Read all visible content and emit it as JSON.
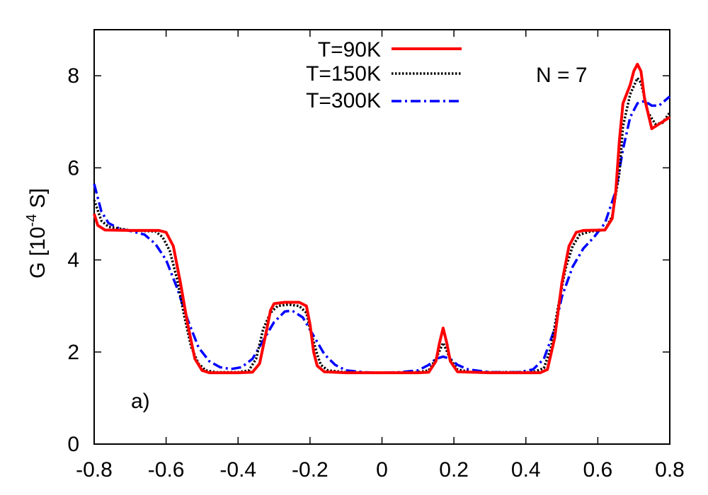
{
  "chart_data": {
    "type": "line",
    "title": "",
    "xlabel": "",
    "ylabel": "G [10",
    "ylabel_exp": "-4",
    "ylabel_tail": " S]",
    "xlim": [
      -0.8,
      0.8
    ],
    "ylim": [
      0,
      9
    ],
    "x_ticks": [
      -0.8,
      -0.6,
      -0.4,
      -0.2,
      0,
      0.2,
      0.4,
      0.6,
      0.8
    ],
    "x_tick_labels": [
      "-0.8",
      "-0.6",
      "-0.4",
      "-0.2",
      "0",
      "0.2",
      "0.4",
      "0.6",
      "0.8"
    ],
    "y_ticks": [
      0,
      2,
      4,
      6,
      8
    ],
    "y_tick_labels": [
      "0",
      "2",
      "4",
      "6",
      "8"
    ],
    "grid": false,
    "legend_position": "top-center",
    "annotations": {
      "panel": "a)",
      "n_label": "N = 7"
    },
    "series": [
      {
        "name": "T=90K",
        "color": "#ff0000",
        "style": "solid",
        "points": [
          [
            -0.8,
            5.0
          ],
          [
            -0.79,
            4.75
          ],
          [
            -0.77,
            4.65
          ],
          [
            -0.7,
            4.64
          ],
          [
            -0.62,
            4.64
          ],
          [
            -0.6,
            4.6
          ],
          [
            -0.58,
            4.3
          ],
          [
            -0.56,
            3.5
          ],
          [
            -0.54,
            2.6
          ],
          [
            -0.52,
            1.85
          ],
          [
            -0.5,
            1.6
          ],
          [
            -0.48,
            1.55
          ],
          [
            -0.4,
            1.55
          ],
          [
            -0.36,
            1.56
          ],
          [
            -0.34,
            1.75
          ],
          [
            -0.32,
            2.5
          ],
          [
            -0.31,
            2.9
          ],
          [
            -0.3,
            3.05
          ],
          [
            -0.27,
            3.08
          ],
          [
            -0.23,
            3.08
          ],
          [
            -0.21,
            3.0
          ],
          [
            -0.2,
            2.6
          ],
          [
            -0.19,
            2.0
          ],
          [
            -0.18,
            1.7
          ],
          [
            -0.16,
            1.57
          ],
          [
            -0.1,
            1.55
          ],
          [
            0.0,
            1.55
          ],
          [
            0.1,
            1.55
          ],
          [
            0.13,
            1.56
          ],
          [
            0.15,
            1.8
          ],
          [
            0.16,
            2.2
          ],
          [
            0.17,
            2.52
          ],
          [
            0.18,
            2.2
          ],
          [
            0.19,
            1.8
          ],
          [
            0.21,
            1.57
          ],
          [
            0.3,
            1.55
          ],
          [
            0.44,
            1.55
          ],
          [
            0.46,
            1.62
          ],
          [
            0.48,
            2.3
          ],
          [
            0.5,
            3.5
          ],
          [
            0.52,
            4.3
          ],
          [
            0.54,
            4.6
          ],
          [
            0.56,
            4.64
          ],
          [
            0.62,
            4.65
          ],
          [
            0.64,
            4.9
          ],
          [
            0.65,
            5.5
          ],
          [
            0.66,
            6.6
          ],
          [
            0.67,
            7.4
          ],
          [
            0.69,
            7.8
          ],
          [
            0.7,
            8.1
          ],
          [
            0.71,
            8.25
          ],
          [
            0.72,
            8.1
          ],
          [
            0.73,
            7.5
          ],
          [
            0.75,
            6.85
          ],
          [
            0.77,
            6.95
          ],
          [
            0.8,
            7.1
          ]
        ]
      },
      {
        "name": "T=150K",
        "color": "#000000",
        "style": "dotted",
        "points": [
          [
            -0.8,
            5.3
          ],
          [
            -0.78,
            4.85
          ],
          [
            -0.76,
            4.72
          ],
          [
            -0.7,
            4.64
          ],
          [
            -0.63,
            4.62
          ],
          [
            -0.61,
            4.5
          ],
          [
            -0.59,
            4.2
          ],
          [
            -0.57,
            3.6
          ],
          [
            -0.55,
            2.8
          ],
          [
            -0.53,
            2.1
          ],
          [
            -0.51,
            1.75
          ],
          [
            -0.49,
            1.6
          ],
          [
            -0.46,
            1.56
          ],
          [
            -0.4,
            1.56
          ],
          [
            -0.37,
            1.6
          ],
          [
            -0.35,
            1.85
          ],
          [
            -0.33,
            2.5
          ],
          [
            -0.31,
            2.85
          ],
          [
            -0.29,
            3.0
          ],
          [
            -0.26,
            3.03
          ],
          [
            -0.23,
            3.0
          ],
          [
            -0.21,
            2.85
          ],
          [
            -0.2,
            2.5
          ],
          [
            -0.18,
            1.95
          ],
          [
            -0.17,
            1.72
          ],
          [
            -0.15,
            1.6
          ],
          [
            -0.1,
            1.56
          ],
          [
            0.0,
            1.55
          ],
          [
            0.1,
            1.56
          ],
          [
            0.13,
            1.6
          ],
          [
            0.15,
            1.85
          ],
          [
            0.17,
            2.2
          ],
          [
            0.19,
            1.85
          ],
          [
            0.21,
            1.62
          ],
          [
            0.25,
            1.56
          ],
          [
            0.42,
            1.56
          ],
          [
            0.45,
            1.65
          ],
          [
            0.47,
            2.1
          ],
          [
            0.49,
            3.0
          ],
          [
            0.51,
            3.8
          ],
          [
            0.53,
            4.3
          ],
          [
            0.55,
            4.55
          ],
          [
            0.58,
            4.62
          ],
          [
            0.62,
            4.65
          ],
          [
            0.64,
            4.95
          ],
          [
            0.66,
            5.9
          ],
          [
            0.67,
            6.9
          ],
          [
            0.69,
            7.6
          ],
          [
            0.71,
            7.95
          ],
          [
            0.72,
            7.85
          ],
          [
            0.74,
            7.2
          ],
          [
            0.76,
            6.95
          ],
          [
            0.78,
            6.98
          ],
          [
            0.8,
            7.2
          ]
        ]
      },
      {
        "name": "T=300K",
        "color": "#0000ff",
        "style": "dash-dot",
        "points": [
          [
            -0.8,
            5.65
          ],
          [
            -0.78,
            5.05
          ],
          [
            -0.76,
            4.8
          ],
          [
            -0.73,
            4.68
          ],
          [
            -0.7,
            4.63
          ],
          [
            -0.66,
            4.55
          ],
          [
            -0.63,
            4.35
          ],
          [
            -0.6,
            4.0
          ],
          [
            -0.57,
            3.4
          ],
          [
            -0.54,
            2.7
          ],
          [
            -0.51,
            2.1
          ],
          [
            -0.48,
            1.8
          ],
          [
            -0.45,
            1.67
          ],
          [
            -0.42,
            1.63
          ],
          [
            -0.39,
            1.67
          ],
          [
            -0.36,
            1.85
          ],
          [
            -0.33,
            2.25
          ],
          [
            -0.3,
            2.65
          ],
          [
            -0.27,
            2.88
          ],
          [
            -0.25,
            2.9
          ],
          [
            -0.22,
            2.75
          ],
          [
            -0.19,
            2.35
          ],
          [
            -0.16,
            1.95
          ],
          [
            -0.13,
            1.72
          ],
          [
            -0.1,
            1.6
          ],
          [
            -0.05,
            1.56
          ],
          [
            0.0,
            1.55
          ],
          [
            0.05,
            1.56
          ],
          [
            0.1,
            1.6
          ],
          [
            0.13,
            1.72
          ],
          [
            0.15,
            1.85
          ],
          [
            0.17,
            1.9
          ],
          [
            0.19,
            1.85
          ],
          [
            0.21,
            1.72
          ],
          [
            0.24,
            1.62
          ],
          [
            0.3,
            1.56
          ],
          [
            0.38,
            1.56
          ],
          [
            0.42,
            1.62
          ],
          [
            0.45,
            1.85
          ],
          [
            0.48,
            2.5
          ],
          [
            0.5,
            3.2
          ],
          [
            0.53,
            3.85
          ],
          [
            0.56,
            4.25
          ],
          [
            0.59,
            4.5
          ],
          [
            0.62,
            4.8
          ],
          [
            0.65,
            5.5
          ],
          [
            0.67,
            6.4
          ],
          [
            0.69,
            7.1
          ],
          [
            0.71,
            7.4
          ],
          [
            0.73,
            7.45
          ],
          [
            0.75,
            7.35
          ],
          [
            0.77,
            7.35
          ],
          [
            0.8,
            7.55
          ]
        ]
      }
    ]
  }
}
